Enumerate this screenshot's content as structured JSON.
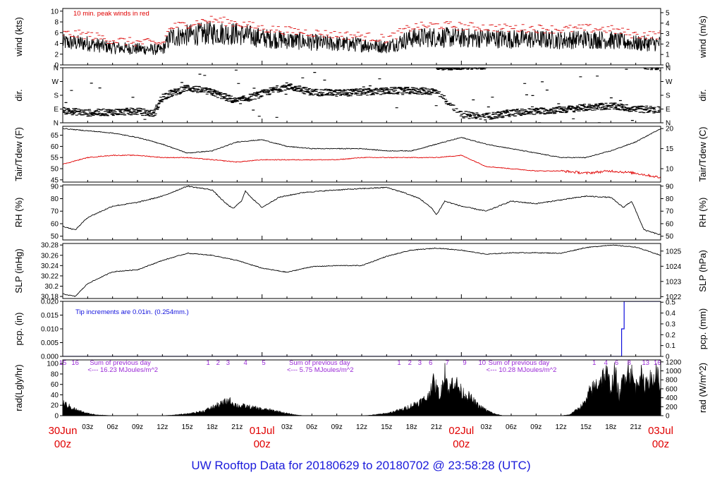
{
  "figure_title": "UW Rooftop Data for 20180629  to  20180702 @ 23:58:28  (UTC)",
  "colors": {
    "black": "#000000",
    "red": "#e00000",
    "blue": "#1010dd",
    "purple": "#9a2ad6",
    "dashRed": "#e02020"
  },
  "time_axis": {
    "range_hours": [
      0,
      72
    ],
    "minor_labels": [
      {
        "h": 3,
        "t": "03z"
      },
      {
        "h": 6,
        "t": "06z"
      },
      {
        "h": 9,
        "t": "09z"
      },
      {
        "h": 12,
        "t": "12z"
      },
      {
        "h": 15,
        "t": "15z"
      },
      {
        "h": 18,
        "t": "18z"
      },
      {
        "h": 21,
        "t": "21z"
      },
      {
        "h": 27,
        "t": "03z"
      },
      {
        "h": 30,
        "t": "06z"
      },
      {
        "h": 33,
        "t": "09z"
      },
      {
        "h": 36,
        "t": "12z"
      },
      {
        "h": 39,
        "t": "15z"
      },
      {
        "h": 42,
        "t": "18z"
      },
      {
        "h": 45,
        "t": "21z"
      },
      {
        "h": 51,
        "t": "03z"
      },
      {
        "h": 54,
        "t": "06z"
      },
      {
        "h": 57,
        "t": "09z"
      },
      {
        "h": 60,
        "t": "12z"
      },
      {
        "h": 63,
        "t": "15z"
      },
      {
        "h": 66,
        "t": "18z"
      },
      {
        "h": 69,
        "t": "21z"
      }
    ],
    "major_labels": [
      {
        "h": 0,
        "date": "30Jun",
        "z": "00z"
      },
      {
        "h": 24,
        "date": "01Jul",
        "z": "00z"
      },
      {
        "h": 48,
        "date": "02Jul",
        "z": "00z"
      },
      {
        "h": 72,
        "date": "03Jul",
        "z": "00z"
      }
    ]
  },
  "chart_data": [
    {
      "type": "line",
      "panel": "wind",
      "ylabel_left": "wind (kts)",
      "ylabel_right": "wind (m/s)",
      "ylim": [
        0,
        10.5
      ],
      "left_ticks": [
        0,
        2,
        4,
        6,
        8,
        10
      ],
      "right_ticks": [
        0,
        1,
        2,
        3,
        4,
        5
      ],
      "annotation": "10 min. peak winds in red",
      "series": [
        {
          "key": "speed",
          "x": [
            0,
            3,
            6,
            9,
            12,
            13,
            15,
            18,
            21,
            24,
            27,
            30,
            33,
            36,
            39,
            42,
            45,
            48,
            51,
            54,
            57,
            60,
            63,
            66,
            69,
            72
          ],
          "values": [
            4.2,
            4.0,
            3.2,
            3.0,
            2.8,
            5.2,
            5.5,
            6.0,
            5.8,
            5.0,
            4.6,
            4.2,
            3.9,
            3.8,
            3.4,
            5.0,
            5.2,
            5.0,
            5.0,
            4.8,
            4.8,
            4.6,
            4.8,
            4.6,
            4.0,
            4.0
          ]
        },
        {
          "key": "peak",
          "x": [
            0,
            3,
            6,
            9,
            12,
            13,
            15,
            18,
            21,
            24,
            27,
            30,
            33,
            36,
            39,
            42,
            45,
            48,
            51,
            54,
            57,
            60,
            63,
            66,
            69,
            72
          ],
          "values": [
            5.8,
            5.6,
            4.6,
            4.2,
            4.0,
            7.0,
            7.6,
            8.4,
            7.8,
            6.8,
            6.4,
            6.0,
            5.6,
            5.4,
            4.8,
            7.0,
            7.4,
            7.2,
            7.0,
            6.8,
            6.8,
            6.6,
            6.8,
            6.6,
            5.6,
            5.6
          ]
        }
      ]
    },
    {
      "type": "scatter",
      "panel": "dir",
      "ylabel_left": "dir.",
      "ylabel_right": "dir.",
      "categories": [
        "N",
        "E",
        "S",
        "W",
        "N"
      ],
      "ylim": [
        0,
        360
      ],
      "series": [
        {
          "key": "direction",
          "x": [
            0,
            3,
            6,
            9,
            11,
            12,
            15,
            18,
            21,
            24,
            27,
            30,
            33,
            36,
            38,
            40,
            42,
            45,
            48,
            51,
            54,
            57,
            60,
            63,
            66,
            69,
            72
          ],
          "values": [
            80,
            65,
            70,
            75,
            60,
            170,
            230,
            200,
            140,
            190,
            240,
            200,
            195,
            200,
            205,
            210,
            210,
            205,
            55,
            40,
            65,
            75,
            85,
            100,
            110,
            90,
            85
          ]
        }
      ]
    },
    {
      "type": "line",
      "panel": "temp",
      "ylabel_left": "Tair/Tdew (F)",
      "ylabel_right": "Tair/Tdew (C)",
      "ylim": [
        44,
        69
      ],
      "left_ticks": [
        45,
        50,
        55,
        60,
        65
      ],
      "right_ticks": [
        10,
        15,
        20
      ],
      "series": [
        {
          "key": "tair",
          "x": [
            0,
            3,
            6,
            9,
            12,
            15,
            18,
            21,
            24,
            27,
            30,
            33,
            36,
            39,
            42,
            45,
            48,
            51,
            54,
            57,
            60,
            63,
            66,
            69,
            72
          ],
          "values": [
            68,
            67,
            66,
            64,
            61,
            57,
            58,
            62,
            63,
            60,
            59,
            59,
            59,
            58,
            58,
            61,
            64,
            61,
            59,
            57,
            55,
            55,
            58,
            62,
            68
          ]
        },
        {
          "key": "tdew",
          "x": [
            0,
            3,
            6,
            9,
            12,
            15,
            18,
            21,
            24,
            27,
            30,
            33,
            36,
            39,
            42,
            45,
            48,
            51,
            54,
            57,
            60,
            63,
            66,
            69,
            72
          ],
          "values": [
            52,
            55,
            56,
            56,
            55,
            55,
            54,
            53,
            54,
            54,
            54,
            54,
            55,
            55,
            55,
            55,
            56,
            51,
            50,
            49,
            49,
            48,
            49,
            48,
            46
          ]
        }
      ]
    },
    {
      "type": "line",
      "panel": "rh",
      "ylabel_left": "RH (%)",
      "ylabel_right": "RH (%)",
      "ylim": [
        47,
        91
      ],
      "left_ticks": [
        50,
        60,
        70,
        80,
        90
      ],
      "right_ticks": [
        50,
        60,
        70,
        80,
        90
      ],
      "series": [
        {
          "key": "rh",
          "x": [
            0,
            1.5,
            3,
            6,
            9,
            12,
            15,
            18,
            19.5,
            20.5,
            21.5,
            22,
            23,
            24,
            26,
            29,
            33,
            36,
            39,
            41,
            43,
            44.5,
            45,
            46,
            48,
            51,
            54,
            57,
            60,
            63,
            66,
            67.5,
            68.5,
            70,
            72
          ],
          "values": [
            58,
            55,
            65,
            74,
            77,
            82,
            90,
            87,
            77,
            72,
            78,
            86,
            79,
            73,
            81,
            85,
            87,
            88,
            89,
            85,
            80,
            72,
            67,
            78,
            74,
            70,
            78,
            76,
            79,
            82,
            81,
            73,
            78,
            55,
            51
          ]
        }
      ]
    },
    {
      "type": "line",
      "panel": "slp",
      "ylabel_left": "SLP (inHg)",
      "ylabel_right": "SLP (hPa)",
      "ylim": [
        30.176,
        30.283
      ],
      "left_ticks": [
        30.18,
        30.2,
        30.22,
        30.24,
        30.26,
        30.28
      ],
      "right_ticks": [
        1022,
        1023,
        1024,
        1025
      ],
      "series": [
        {
          "key": "slp",
          "x": [
            0,
            1.5,
            3,
            6,
            9,
            12,
            15,
            18,
            21,
            24,
            27,
            30,
            33,
            36,
            39,
            42,
            45,
            48,
            51,
            54,
            57,
            60,
            63,
            66,
            69,
            72
          ],
          "values": [
            30.185,
            30.18,
            30.205,
            30.228,
            30.232,
            30.25,
            30.264,
            30.26,
            30.25,
            30.235,
            30.227,
            30.238,
            30.24,
            30.24,
            30.258,
            30.27,
            30.274,
            30.27,
            30.262,
            30.265,
            30.265,
            30.264,
            30.275,
            30.28,
            30.276,
            30.26
          ]
        }
      ]
    },
    {
      "type": "line",
      "panel": "pcp",
      "ylabel_left": "pcp. (in)",
      "ylabel_right": "pcp. (mm)",
      "ylim": [
        0,
        0.02
      ],
      "left_ticks": [
        0,
        0.005,
        0.01,
        0.015,
        0.02
      ],
      "left_tick_labels": [
        "0.000",
        "0.005",
        "0.010",
        "0.015",
        "0.020"
      ],
      "right_ticks": [
        0,
        0.1,
        0.2,
        0.3,
        0.4,
        0.5
      ],
      "annotation": "Tip increments are 0.01in. (0.254mm.)",
      "series": [
        {
          "key": "pcp",
          "x": [
            0,
            67.3,
            67.3,
            67.6,
            67.6,
            72
          ],
          "values": [
            0,
            0,
            0.01,
            0.01,
            0.02,
            0.02
          ]
        }
      ]
    },
    {
      "type": "area",
      "panel": "rad",
      "ylabel_left": "rad(Lgly/hr)",
      "ylabel_right": "rad (W/m^2)",
      "ylim": [
        0,
        107
      ],
      "left_ticks": [
        0,
        20,
        40,
        60,
        80,
        100
      ],
      "right_ticks": [
        0,
        200,
        400,
        600,
        800,
        1000,
        1200
      ],
      "annotations": [
        {
          "h": 3,
          "text": "Sum of previous day"
        },
        {
          "h": 3,
          "text": "<--- 16.23 MJoules/m^2",
          "row": 2
        },
        {
          "h": 27,
          "text": "Sum of previous day"
        },
        {
          "h": 27,
          "text": "<--- 5.75 MJoules/m^2",
          "row": 2
        },
        {
          "h": 51,
          "text": "Sum of previous day"
        },
        {
          "h": 51,
          "text": "<--- 10.28 MJoules/m^2",
          "row": 2
        }
      ],
      "hour_marks": [
        {
          "h": 0,
          "t": "15"
        },
        {
          "h": 1.5,
          "t": "16"
        },
        {
          "h": 17.5,
          "t": "1"
        },
        {
          "h": 18.7,
          "t": "2"
        },
        {
          "h": 19.9,
          "t": "3"
        },
        {
          "h": 22,
          "t": "4"
        },
        {
          "h": 24.2,
          "t": "5"
        },
        {
          "h": 40.5,
          "t": "1"
        },
        {
          "h": 41.8,
          "t": "2"
        },
        {
          "h": 43,
          "t": "3"
        },
        {
          "h": 44.3,
          "t": "6"
        },
        {
          "h": 46.3,
          "t": "7"
        },
        {
          "h": 48.4,
          "t": "9"
        },
        {
          "h": 50.5,
          "t": "10"
        },
        {
          "h": 64,
          "t": "1"
        },
        {
          "h": 65.4,
          "t": "4"
        },
        {
          "h": 66.7,
          "t": "6"
        },
        {
          "h": 68.2,
          "t": "8"
        },
        {
          "h": 70.2,
          "t": "13"
        },
        {
          "h": 71.6,
          "t": "16"
        }
      ],
      "series": [
        {
          "key": "rad",
          "x": [
            0,
            1,
            2,
            3,
            4,
            5,
            6,
            12,
            13,
            15,
            17,
            18,
            19,
            20,
            21,
            22,
            23,
            24,
            25,
            26,
            27,
            28,
            29,
            36,
            37,
            39,
            41,
            42,
            43,
            44,
            44.5,
            45,
            45.5,
            46,
            46.5,
            47,
            48,
            49,
            50,
            51,
            52,
            53,
            60,
            61,
            62,
            63,
            63.5,
            64,
            65,
            65.5,
            66,
            66.5,
            67,
            67.5,
            68,
            68.5,
            69,
            69.5,
            70,
            70.5,
            71,
            71.5,
            72
          ],
          "values": [
            28,
            18,
            10,
            5,
            2,
            1,
            0,
            0,
            1,
            4,
            10,
            18,
            25,
            33,
            22,
            20,
            17,
            14,
            12,
            9,
            5,
            2,
            0,
            0,
            1,
            5,
            14,
            22,
            30,
            40,
            75,
            60,
            40,
            105,
            50,
            80,
            52,
            40,
            22,
            12,
            4,
            0,
            0,
            2,
            14,
            30,
            55,
            62,
            85,
            90,
            60,
            95,
            40,
            80,
            104,
            90,
            60,
            95,
            65,
            85,
            70,
            95,
            60
          ]
        }
      ]
    }
  ]
}
